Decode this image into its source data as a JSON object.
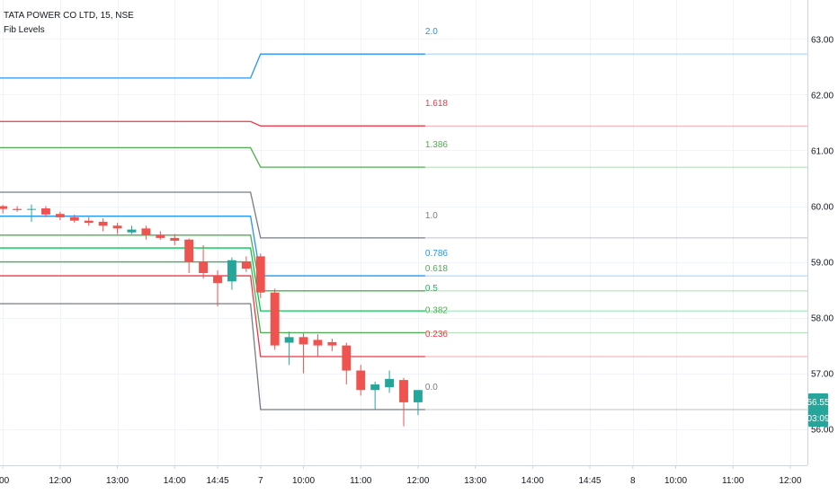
{
  "legend": {
    "symbol": "TATA POWER CO LTD, 15, NSE",
    "indicator": "Fib Levels"
  },
  "badges": {
    "price": "56.55",
    "countdown": "03:09",
    "color": "#26a69a"
  },
  "chart_data": {
    "type": "candlestick",
    "yaxis": {
      "ticks": [
        "63.00",
        "62.00",
        "61.00",
        "60.00",
        "59.00",
        "58.00",
        "57.00",
        "56.00"
      ],
      "tick_values": [
        63,
        62,
        61,
        60,
        59,
        58,
        57,
        56
      ],
      "range": [
        55.35,
        63.7
      ]
    },
    "xaxis": {
      "ticks": [
        ":00",
        "12:00",
        "13:00",
        "14:00",
        "14:45",
        "7",
        "10:00",
        "11:00",
        "12:00",
        "13:00",
        "14:00",
        "14:45",
        "8",
        "10:00",
        "11:00",
        "12:00"
      ],
      "tick_index": [
        0,
        4,
        8,
        12,
        15,
        18,
        21,
        25,
        29,
        33,
        37,
        41,
        44,
        47,
        51,
        55
      ],
      "range": [
        -0.2,
        56.2
      ]
    },
    "up_color": "#26a69a",
    "down_color": "#ef5350",
    "candles": [
      {
        "o": 60.0,
        "h": 60.02,
        "l": 59.87,
        "c": 59.95
      },
      {
        "o": 59.95,
        "h": 60.0,
        "l": 59.9,
        "c": 59.93
      },
      {
        "o": 59.94,
        "h": 60.03,
        "l": 59.72,
        "c": 59.95
      },
      {
        "o": 59.96,
        "h": 60.0,
        "l": 59.8,
        "c": 59.85
      },
      {
        "o": 59.86,
        "h": 59.9,
        "l": 59.75,
        "c": 59.8
      },
      {
        "o": 59.8,
        "h": 59.85,
        "l": 59.7,
        "c": 59.74
      },
      {
        "o": 59.74,
        "h": 59.8,
        "l": 59.65,
        "c": 59.7
      },
      {
        "o": 59.72,
        "h": 59.78,
        "l": 59.55,
        "c": 59.65
      },
      {
        "o": 59.65,
        "h": 59.7,
        "l": 59.5,
        "c": 59.6
      },
      {
        "o": 59.53,
        "h": 59.65,
        "l": 59.5,
        "c": 59.58
      },
      {
        "o": 59.6,
        "h": 59.65,
        "l": 59.4,
        "c": 59.48
      },
      {
        "o": 59.48,
        "h": 59.55,
        "l": 59.4,
        "c": 59.43
      },
      {
        "o": 59.43,
        "h": 59.5,
        "l": 59.3,
        "c": 59.38
      },
      {
        "o": 59.4,
        "h": 59.42,
        "l": 58.8,
        "c": 59.0
      },
      {
        "o": 59.0,
        "h": 59.3,
        "l": 58.7,
        "c": 58.8
      },
      {
        "o": 58.75,
        "h": 58.85,
        "l": 58.2,
        "c": 58.62
      },
      {
        "o": 58.65,
        "h": 59.08,
        "l": 58.5,
        "c": 59.03
      },
      {
        "o": 59.0,
        "h": 59.1,
        "l": 58.82,
        "c": 58.88
      },
      {
        "o": 59.1,
        "h": 59.15,
        "l": 58.35,
        "c": 58.45
      },
      {
        "o": 58.45,
        "h": 58.52,
        "l": 57.42,
        "c": 57.5
      },
      {
        "o": 57.55,
        "h": 57.75,
        "l": 57.15,
        "c": 57.65
      },
      {
        "o": 57.65,
        "h": 57.72,
        "l": 57.0,
        "c": 57.52
      },
      {
        "o": 57.6,
        "h": 57.7,
        "l": 57.3,
        "c": 57.5
      },
      {
        "o": 57.56,
        "h": 57.62,
        "l": 57.4,
        "c": 57.5
      },
      {
        "o": 57.5,
        "h": 57.55,
        "l": 56.8,
        "c": 57.05
      },
      {
        "o": 57.05,
        "h": 57.15,
        "l": 56.6,
        "c": 56.7
      },
      {
        "o": 56.7,
        "h": 56.85,
        "l": 56.35,
        "c": 56.8
      },
      {
        "o": 56.75,
        "h": 57.05,
        "l": 56.65,
        "c": 56.9
      },
      {
        "o": 56.88,
        "h": 56.92,
        "l": 56.05,
        "c": 56.48
      },
      {
        "o": 56.48,
        "h": 56.65,
        "l": 56.25,
        "c": 56.7
      }
    ],
    "fib_levels": [
      {
        "label": "2.0",
        "color": "#2196f3",
        "before": 62.3,
        "after": 62.73
      },
      {
        "label": "1.618",
        "color": "#f23645",
        "before": 61.52,
        "after": 61.44
      },
      {
        "label": "1.386",
        "color": "#4caf50",
        "before": 61.05,
        "after": 60.7
      },
      {
        "label": "1.0",
        "color": "#787b86",
        "before": 60.25,
        "after": 59.43
      },
      {
        "label": "0.786",
        "color": "#2196f3",
        "before": 59.82,
        "after": 58.75
      },
      {
        "label": "0.618",
        "color": "#4caf50",
        "before": 59.48,
        "after": 58.48
      },
      {
        "label": "0.5",
        "color": "#00c853",
        "before": 59.25,
        "after": 58.12
      },
      {
        "label": "0.382",
        "color": "#4caf50",
        "before": 59.0,
        "after": 57.73
      },
      {
        "label": "0.236",
        "color": "#f23645",
        "before": 58.75,
        "after": 57.3
      },
      {
        "label": "0.0",
        "color": "#787b86",
        "before": 58.25,
        "after": 56.35
      }
    ],
    "fib_transition": {
      "start_index": 17.3,
      "end_index": 18.0
    },
    "fib_labels_at_index": 29
  }
}
